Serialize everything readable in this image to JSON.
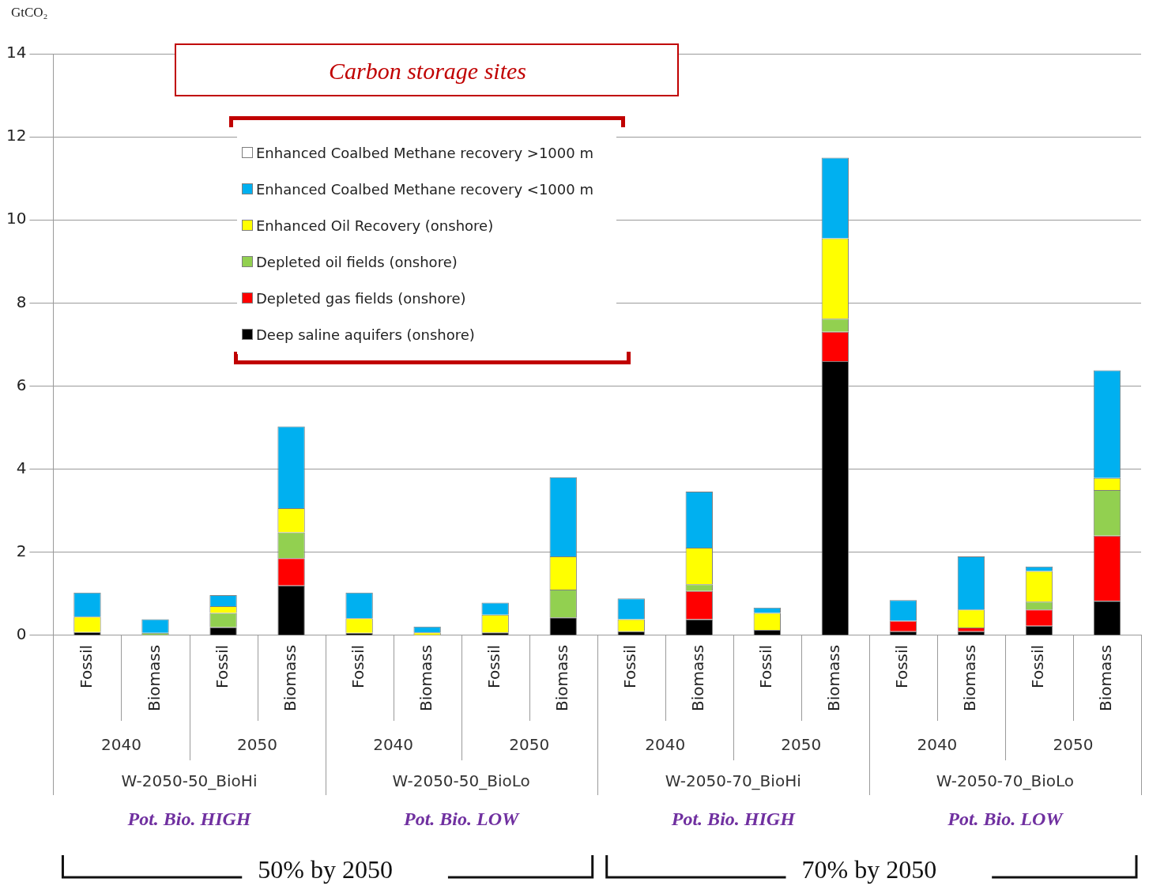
{
  "chart_data": {
    "type": "bar",
    "stacked": true,
    "ylabel": "GtCO₂",
    "legend_title": "Carbon storage sites",
    "legend": "top",
    "grid": "y",
    "categories": [
      "Fossil",
      "Biomass",
      "Fossil",
      "Biomass",
      "Fossil",
      "Biomass",
      "Fossil",
      "Biomass",
      "Fossil",
      "Biomass",
      "Fossil",
      "Biomass",
      "Fossil",
      "Biomass",
      "Fossil",
      "Biomass"
    ],
    "ylim": [
      0,
      14
    ],
    "yticks": [
      0,
      2,
      4,
      6,
      8,
      10,
      12,
      14
    ],
    "series": [
      {
        "name": "Deep saline aquifers (onshore)",
        "color": "#000000",
        "values": [
          0.08,
          0,
          0.2,
          1.2,
          0.06,
          0,
          0.07,
          0.43,
          0.1,
          0.39,
          0.13,
          6.6,
          0.1,
          0.1,
          0.23,
          0.83
        ]
      },
      {
        "name": "Depleted gas fields (onshore)",
        "color": "#ff0000",
        "values": [
          0,
          0,
          0,
          0.66,
          0,
          0,
          0,
          0,
          0,
          0.68,
          0,
          0.71,
          0.25,
          0.09,
          0.39,
          1.57
        ]
      },
      {
        "name": "Depleted oil fields (onshore)",
        "color": "#92d050",
        "values": [
          0,
          0.06,
          0.34,
          0.62,
          0,
          0,
          0,
          0.67,
          0,
          0.16,
          0,
          0.31,
          0,
          0,
          0.19,
          1.1
        ]
      },
      {
        "name": "Enhanced Oil Recovery (onshore)",
        "color": "#ffff00",
        "values": [
          0.37,
          0,
          0.16,
          0.58,
          0.35,
          0.07,
          0.43,
          0.8,
          0.29,
          0.88,
          0.41,
          1.94,
          0,
          0.43,
          0.74,
          0.29
        ]
      },
      {
        "name": "Enhanced Coalbed Methane recovery <1000 m",
        "color": "#00b0f0",
        "values": [
          0.58,
          0.33,
          0.27,
          1.97,
          0.62,
          0.14,
          0.29,
          1.91,
          0.5,
          1.35,
          0.13,
          1.94,
          0.5,
          1.28,
          0.11,
          2.59
        ]
      },
      {
        "name": "Enhanced Coalbed Methane recovery >1000 m",
        "color": "#ffffff",
        "values": [
          0,
          0,
          0,
          0,
          0,
          0,
          0,
          0,
          0,
          0,
          0,
          0,
          0,
          0,
          0,
          0
        ]
      }
    ],
    "annotations": [
      "2040",
      "2050",
      "2040",
      "2050",
      "2040",
      "2050",
      "2040",
      "2050",
      "W-2050-50_BioHi",
      "W-2050-50_BioLo",
      "W-2050-70_BioHi",
      "W-2050-70_BioLo",
      "Pot. Bio. HIGH",
      "Pot. Bio. LOW",
      "Pot. Bio. HIGH",
      "Pot. Bio. LOW",
      "50% by 2050",
      "70% by 2050"
    ]
  }
}
